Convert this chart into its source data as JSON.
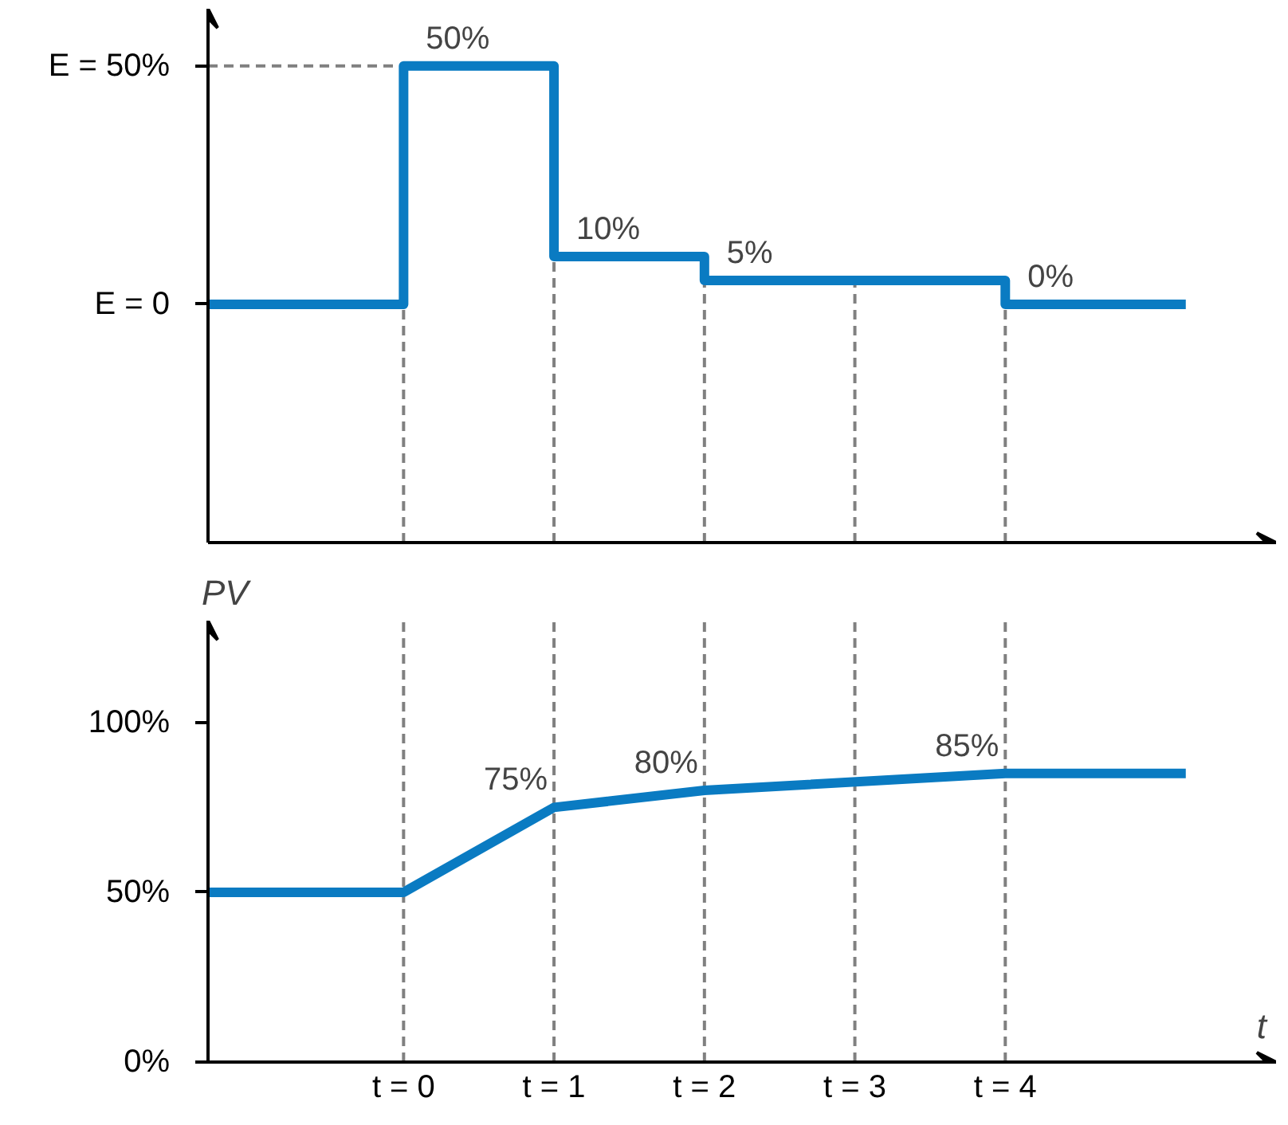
{
  "chart_data": [
    {
      "type": "step",
      "x": [
        -1.3,
        0,
        1,
        2,
        4,
        5.2
      ],
      "series": [
        {
          "color": "#0a7bc2",
          "values": [
            0,
            50,
            10,
            5,
            0,
            0
          ],
          "value_labels": [
            null,
            "50%",
            "10%",
            "5%",
            "0%",
            null
          ]
        }
      ],
      "xlim": [
        -1.3,
        5.8
      ],
      "ylim": [
        -50,
        62
      ],
      "yticks": [
        {
          "value": 0,
          "label": "E = 0"
        },
        {
          "value": 50,
          "label": "E = 50%"
        }
      ],
      "tick_labels": "y",
      "grid": false,
      "ref_lines": [
        {
          "axis": "x",
          "value": 0,
          "color": "#808080",
          "line_style": "dashed"
        },
        {
          "axis": "x",
          "value": 1,
          "color": "#808080",
          "line_style": "dashed"
        },
        {
          "axis": "x",
          "value": 2,
          "color": "#808080",
          "line_style": "dashed"
        },
        {
          "axis": "x",
          "value": 3,
          "color": "#808080",
          "line_style": "dashed"
        },
        {
          "axis": "x",
          "value": 4,
          "color": "#808080",
          "line_style": "dashed"
        },
        {
          "axis": "y",
          "value": 50,
          "color": "#808080",
          "line_style": "dashed"
        }
      ]
    },
    {
      "type": "line",
      "x": [
        -1.3,
        0,
        1,
        2,
        4,
        5.2
      ],
      "series": [
        {
          "color": "#0a7bc2",
          "values": [
            50,
            50,
            75,
            80,
            85,
            85
          ],
          "value_labels": [
            null,
            null,
            "75%",
            "80%",
            "85%",
            null
          ]
        }
      ],
      "xlim": [
        -1.3,
        5.8
      ],
      "ylim": [
        0,
        130
      ],
      "yticks": [
        {
          "value": 0,
          "label": "0%"
        },
        {
          "value": 50,
          "label": "50%"
        },
        {
          "value": 100,
          "label": "100%"
        }
      ],
      "xticks": [
        {
          "value": 0,
          "label": "t = 0"
        },
        {
          "value": 1,
          "label": "t = 1"
        },
        {
          "value": 2,
          "label": "t = 2"
        },
        {
          "value": 3,
          "label": "t = 3"
        },
        {
          "value": 4,
          "label": "t = 4"
        }
      ],
      "xlabel": "t",
      "ylabel": "PV",
      "grid": false,
      "ref_lines": [
        {
          "axis": "x",
          "value": 0,
          "color": "#808080",
          "line_style": "dashed"
        },
        {
          "axis": "x",
          "value": 1,
          "color": "#808080",
          "line_style": "dashed"
        },
        {
          "axis": "x",
          "value": 2,
          "color": "#808080",
          "line_style": "dashed"
        },
        {
          "axis": "x",
          "value": 3,
          "color": "#808080",
          "line_style": "dashed"
        },
        {
          "axis": "x",
          "value": 4,
          "color": "#808080",
          "line_style": "dashed"
        }
      ]
    }
  ]
}
